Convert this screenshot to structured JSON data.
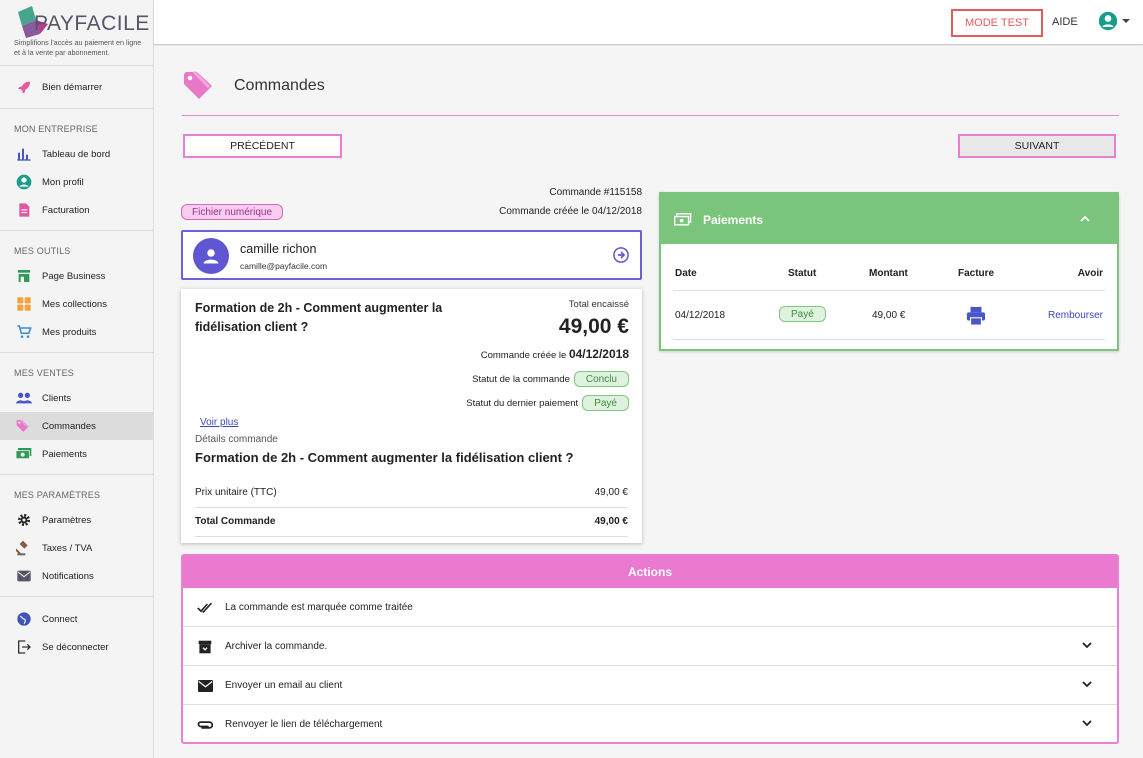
{
  "brand": {
    "name": "PAYFACILE",
    "tagline": "Simplifions l'accès au paiement en ligne et à la vente par abonnement."
  },
  "sidebar": {
    "top_item": {
      "label": "Bien démarrer",
      "icon": "rocket-icon"
    },
    "groups": [
      {
        "title": "MON ENTREPRISE",
        "items": [
          {
            "label": "Tableau de bord",
            "icon": "bar-chart-icon"
          },
          {
            "label": "Mon profil",
            "icon": "account-circle-icon"
          },
          {
            "label": "Facturation",
            "icon": "document-icon"
          }
        ]
      },
      {
        "title": "MES OUTILS",
        "items": [
          {
            "label": "Page Business",
            "icon": "store-icon"
          },
          {
            "label": "Mes collections",
            "icon": "grid-icon"
          },
          {
            "label": "Mes produits",
            "icon": "cart-icon"
          }
        ]
      },
      {
        "title": "MES VENTES",
        "items": [
          {
            "label": "Clients",
            "icon": "people-icon"
          },
          {
            "label": "Commandes",
            "icon": "tag-icon"
          },
          {
            "label": "Paiements",
            "icon": "money-icon"
          }
        ]
      },
      {
        "title": "MES PARAMÈTRES",
        "items": [
          {
            "label": "Paramètres",
            "icon": "gear-icon"
          },
          {
            "label": "Taxes / TVA",
            "icon": "gavel-icon"
          },
          {
            "label": "Notifications",
            "icon": "mail-icon"
          }
        ]
      }
    ],
    "bottom_items": [
      {
        "label": "Connect",
        "icon": "globe-icon"
      },
      {
        "label": "Se déconnecter",
        "icon": "logout-icon"
      }
    ],
    "active": "Commandes"
  },
  "topbar": {
    "mode_test": "MODE TEST",
    "aide": "AIDE"
  },
  "page": {
    "title": "Commandes",
    "prev_label": "PRÉCÉDENT",
    "next_label": "SUIVANT",
    "order_number": "Commande #115158",
    "order_created": "Commande créée le 04/12/2018",
    "badge": "Fichier numérique"
  },
  "customer": {
    "name": "camille richon",
    "email": "camille@payfacile.com"
  },
  "order": {
    "title": "Formation de 2h - Comment augmenter la fidélisation client ?",
    "total_label": "Total encaissé",
    "total": "49,00 €",
    "created_prefix": "Commande créée le",
    "created_date": "04/12/2018",
    "status_label": "Statut de la commande",
    "status_value": "Conclu",
    "payment_status_label": "Statut du dernier paiement",
    "payment_status_value": "Payé",
    "voir_plus": "Voir plus",
    "details_label": "Détails commande",
    "details_title": "Formation de 2h - Comment augmenter la fidélisation client ?",
    "unit_price_label": "Prix unitaire (TTC)",
    "unit_price_value": "49,00 €",
    "total_cmd_label": "Total Commande",
    "total_cmd_value": "49,00 €"
  },
  "payments": {
    "title": "Paiements",
    "columns": [
      "Date",
      "Statut",
      "Montant",
      "Facture",
      "Avoir"
    ],
    "rows": [
      {
        "date": "04/12/2018",
        "status": "Payé",
        "amount": "49,00 €",
        "facture_icon": "print-icon",
        "avoir": "Rembourser"
      }
    ]
  },
  "actions": {
    "title": "Actions",
    "items": [
      {
        "label": "La commande est marquée comme traitée",
        "icon": "double-check-icon"
      },
      {
        "label": "Archiver la commande.",
        "icon": "archive-icon"
      },
      {
        "label": "Envoyer un email au client",
        "icon": "mail-icon"
      },
      {
        "label": "Renvoyer le lien de téléchargement",
        "icon": "attachment-icon"
      }
    ]
  },
  "colors": {
    "pink": "#e97ad0",
    "green": "#7bc47b",
    "purple": "#5f56d4",
    "red": "#e25c5c"
  }
}
